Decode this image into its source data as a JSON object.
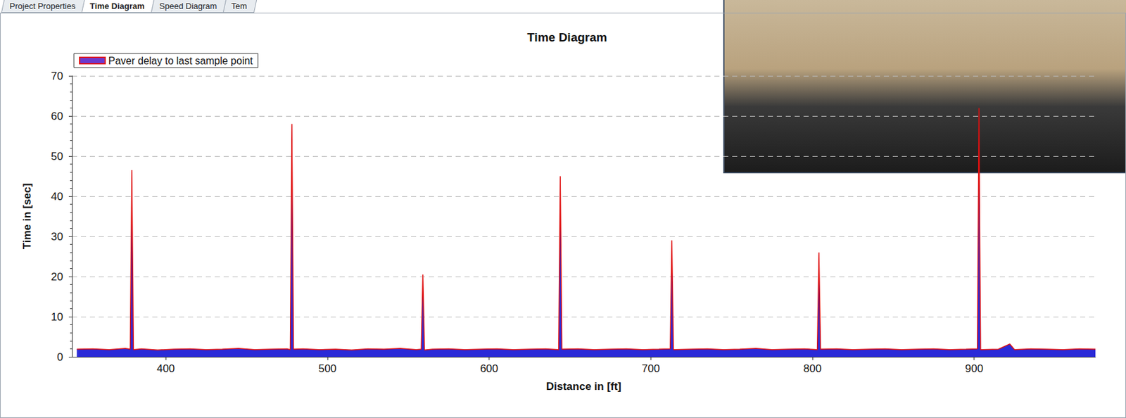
{
  "tabs": [
    "Project Properties",
    "Time Diagram",
    "Speed Diagram",
    "Tem"
  ],
  "active_tab": 1,
  "chart_data": {
    "type": "line",
    "title": "Time Diagram",
    "x_label": "Distance in [ft]",
    "y_label": "Time in [sec]",
    "x": [
      345,
      355,
      365,
      375,
      378,
      379,
      380,
      385,
      395,
      405,
      415,
      425,
      435,
      445,
      455,
      465,
      475,
      477,
      478,
      478.5,
      479,
      485,
      495,
      505,
      515,
      525,
      535,
      545,
      555,
      558,
      559,
      559.5,
      560,
      565,
      575,
      585,
      595,
      605,
      615,
      625,
      635,
      643,
      644,
      644.5,
      645,
      655,
      665,
      675,
      685,
      695,
      705,
      712,
      713,
      714,
      725,
      735,
      745,
      755,
      765,
      775,
      785,
      795,
      803,
      804,
      805,
      815,
      825,
      835,
      845,
      855,
      865,
      875,
      885,
      895,
      902,
      903,
      903.5,
      904,
      915,
      922,
      925,
      935,
      945,
      955,
      965,
      975
    ],
    "series": [
      {
        "name": "Paver delay to last sample point",
        "color": "#e01010",
        "values": [
          1.9,
          2.0,
          1.8,
          2.1,
          1.9,
          46.5,
          1.8,
          2.0,
          1.7,
          1.9,
          2.0,
          1.8,
          1.9,
          2.1,
          1.8,
          1.9,
          2.0,
          1.8,
          58,
          30,
          1.9,
          2.0,
          1.8,
          1.9,
          1.7,
          2.0,
          1.9,
          2.1,
          1.8,
          1.9,
          20.5,
          12,
          1.7,
          1.9,
          2.0,
          1.8,
          1.9,
          2.0,
          1.8,
          1.9,
          2.0,
          1.8,
          45,
          24,
          1.9,
          2.0,
          1.8,
          1.9,
          2.0,
          1.8,
          1.9,
          2.0,
          29,
          1.8,
          1.9,
          2.0,
          1.8,
          1.9,
          2.1,
          1.8,
          1.9,
          2.0,
          1.8,
          26,
          1.9,
          2.0,
          1.8,
          1.9,
          2.0,
          1.8,
          1.9,
          2.0,
          1.8,
          1.9,
          2.0,
          62,
          28,
          1.8,
          1.9,
          3.2,
          1.8,
          2.0,
          1.9,
          1.8,
          2.0,
          1.9
        ]
      }
    ],
    "xlim": [
      342,
      975
    ],
    "xticks": [
      400,
      500,
      600,
      700,
      800,
      900
    ],
    "ylim": [
      0,
      70
    ],
    "yticks": [
      0,
      10,
      20,
      30,
      40,
      50,
      60,
      70
    ],
    "grid": true,
    "legend": "top-left"
  }
}
